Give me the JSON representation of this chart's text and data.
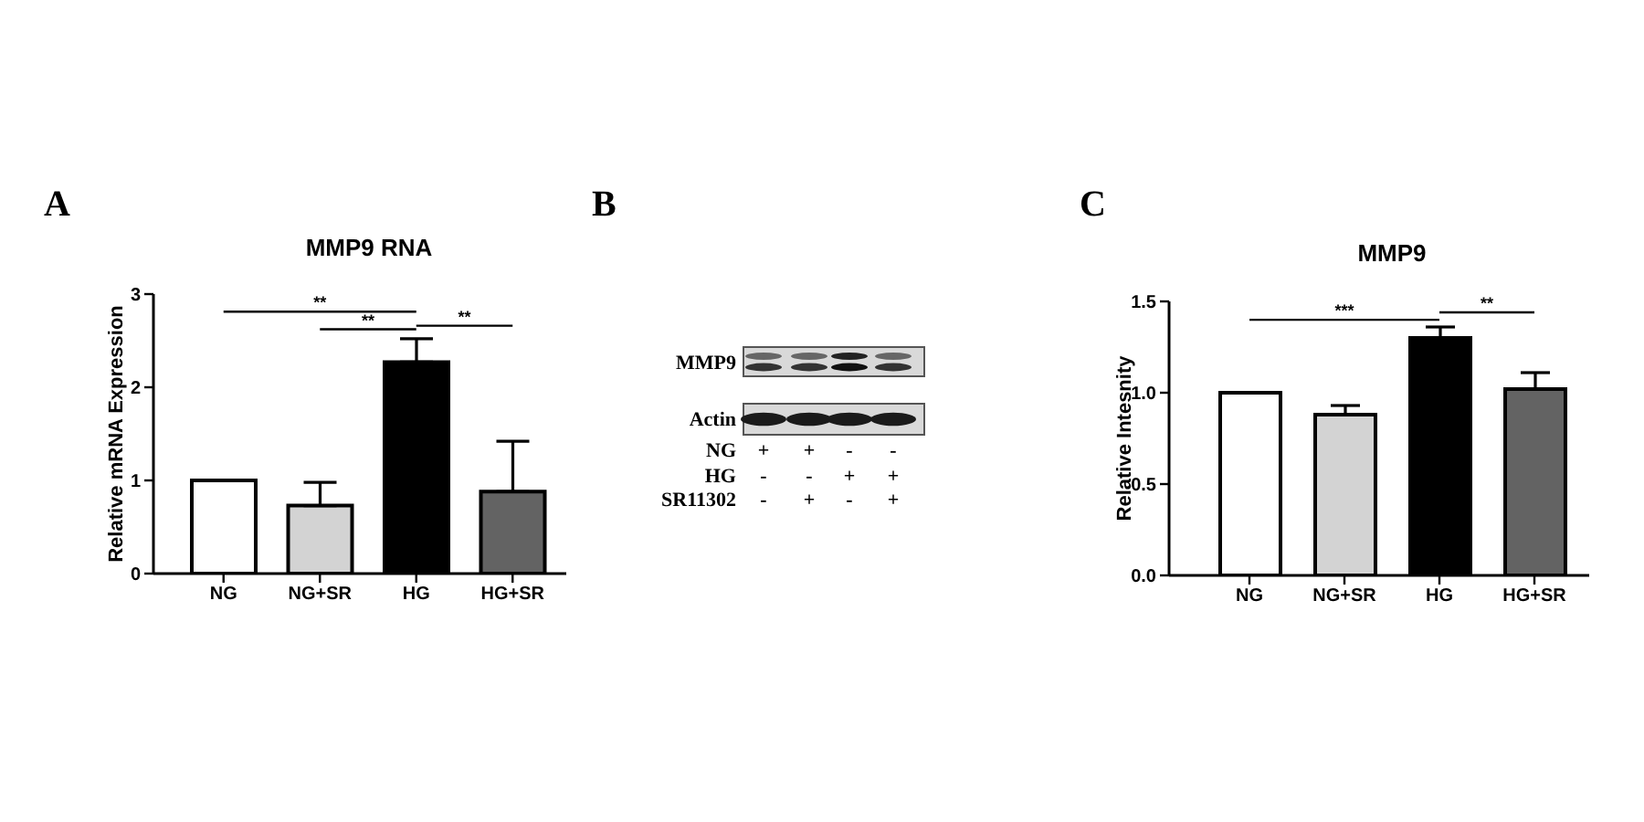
{
  "chart_data": [
    {
      "type": "bar",
      "title": "MMP9 RNA",
      "ylabel": "Relative mRNA Expression",
      "categories": [
        "NG",
        "NG+SR",
        "HG",
        "HG+SR"
      ],
      "values": [
        1.0,
        0.73,
        2.27,
        0.88
      ],
      "colors": [
        "#ffffff",
        "#d3d3d3",
        "#000000",
        "#636363"
      ],
      "errors": [
        null,
        [
          0.73,
          0.98
        ],
        [
          2.27,
          2.52
        ],
        [
          0.88,
          1.42
        ]
      ],
      "ylim": [
        0,
        3
      ],
      "yticks": [
        0,
        1,
        2,
        3
      ],
      "annotations": [
        "A",
        "**",
        "**",
        "**"
      ]
    },
    {
      "type": "other",
      "annotations": [
        "B",
        "MMP9",
        "Actin",
        "NG",
        "+",
        "+",
        "-",
        "-",
        "HG",
        "-",
        "-",
        "+",
        "+",
        "SR11302",
        "-",
        "+",
        "-",
        "+"
      ]
    },
    {
      "type": "bar",
      "title": "MMP9",
      "ylabel": "Relative Intesnity",
      "categories": [
        "NG",
        "NG+SR",
        "HG",
        "HG+SR"
      ],
      "values": [
        1.0,
        0.88,
        1.3,
        1.02
      ],
      "colors": [
        "#ffffff",
        "#d3d3d3",
        "#000000",
        "#636363"
      ],
      "errors": [
        null,
        [
          0.88,
          0.93
        ],
        [
          1.3,
          1.36
        ],
        [
          1.02,
          1.11
        ]
      ],
      "ylim": [
        0,
        1.5
      ],
      "yticks": [
        {
          "value": 0,
          "label": "0.0"
        },
        {
          "value": 0.5,
          "label": "0.5"
        },
        {
          "value": 1,
          "label": "1.0"
        },
        {
          "value": 1.5,
          "label": "1.5"
        }
      ],
      "annotations": [
        "C",
        "***",
        "**"
      ]
    }
  ]
}
